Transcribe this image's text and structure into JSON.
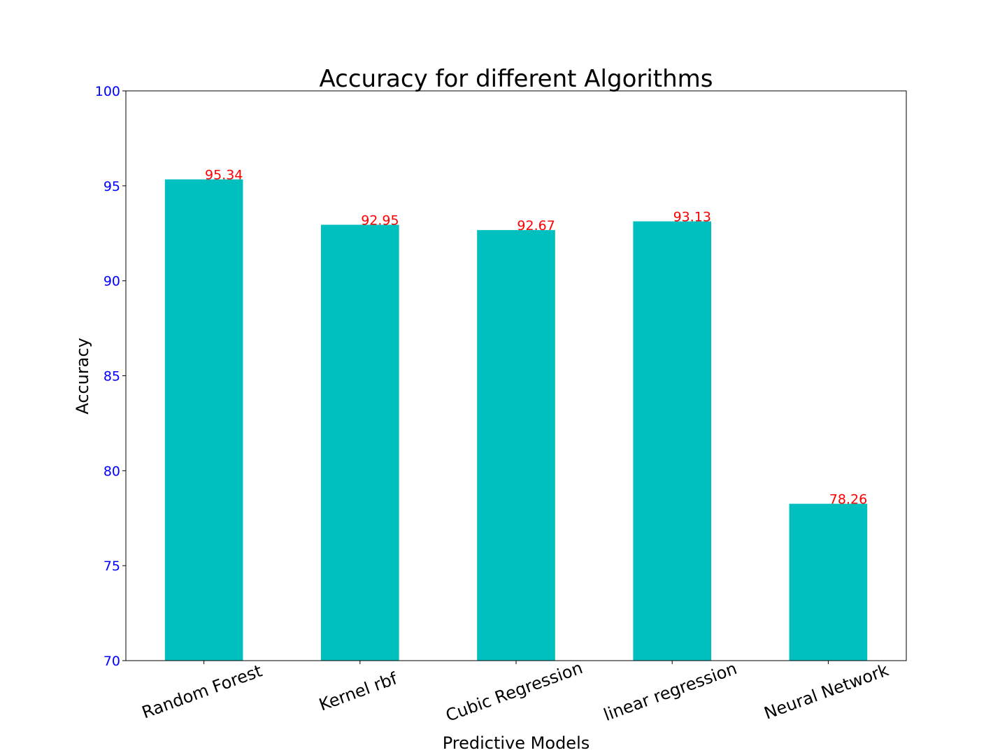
{
  "chart_data": {
    "type": "bar",
    "title": "Accuracy for different Algorithms",
    "xlabel": "Predictive Models",
    "ylabel": "Accuracy",
    "categories": [
      "Random Forest",
      "Kernel rbf",
      "Cubic Regression",
      "linear regression",
      "Neural Network"
    ],
    "values": [
      95.34,
      92.95,
      92.67,
      93.13,
      78.26
    ],
    "data_labels": [
      "95.34",
      "92.95",
      "92.67",
      "93.13",
      "78.26"
    ],
    "ylim": [
      70,
      100
    ],
    "yticks": [
      70,
      75,
      80,
      85,
      90,
      95,
      100
    ],
    "ytick_labels": [
      "70",
      "75",
      "80",
      "85",
      "90",
      "95",
      "100"
    ],
    "grid": false,
    "legend": "none",
    "colors": {
      "bar": "#00bfbf",
      "ytick_label": "#0000ff",
      "data_label": "#ff0000",
      "axis": "#000000"
    }
  }
}
